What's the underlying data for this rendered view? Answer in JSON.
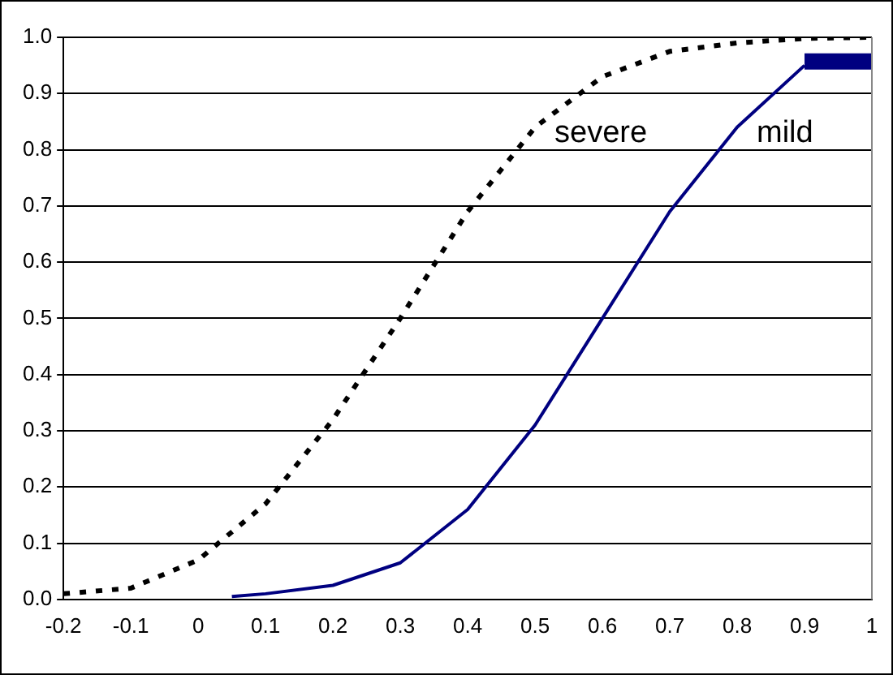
{
  "chart_data": {
    "type": "line",
    "xlim": [
      -0.2,
      1
    ],
    "xticks": [
      -0.2,
      -0.1,
      0,
      0.1,
      0.2,
      0.3,
      0.4,
      0.5,
      0.6,
      0.7,
      0.8,
      0.9,
      1
    ],
    "ylim": [
      0,
      1
    ],
    "yticks": [
      {
        "value": 0,
        "label": "0.0"
      },
      0.1,
      0.2,
      0.3,
      0.4,
      0.5,
      0.6,
      0.7,
      0.8,
      0.9,
      {
        "value": 1,
        "label": "1.0"
      }
    ],
    "grid": "y",
    "legend": false,
    "marker": "none",
    "series": [
      {
        "name": "severe",
        "color": "#000000",
        "line_style": "dotted",
        "x": [
          -0.2,
          -0.1,
          0,
          0.1,
          0.2,
          0.3,
          0.4,
          0.5,
          0.6,
          0.7,
          0.8,
          0.9,
          1
        ],
        "values": [
          0.01,
          0.02,
          0.07,
          0.17,
          0.32,
          0.5,
          0.69,
          0.84,
          0.93,
          0.975,
          0.99,
          0.998,
          1.0
        ]
      },
      {
        "name": "mild",
        "color": "#000080",
        "line_style": "solid",
        "x": [
          0.05,
          0.1,
          0.2,
          0.3,
          0.4,
          0.5,
          0.6,
          0.7,
          0.8,
          0.9
        ],
        "values": [
          0.005,
          0.01,
          0.025,
          0.065,
          0.16,
          0.31,
          0.5,
          0.69,
          0.84,
          0.95
        ]
      },
      {
        "color": "#000080",
        "line_style": "solid",
        "x": [
          0.9,
          1
        ],
        "values": [
          0.957,
          0.957
        ]
      }
    ]
  }
}
